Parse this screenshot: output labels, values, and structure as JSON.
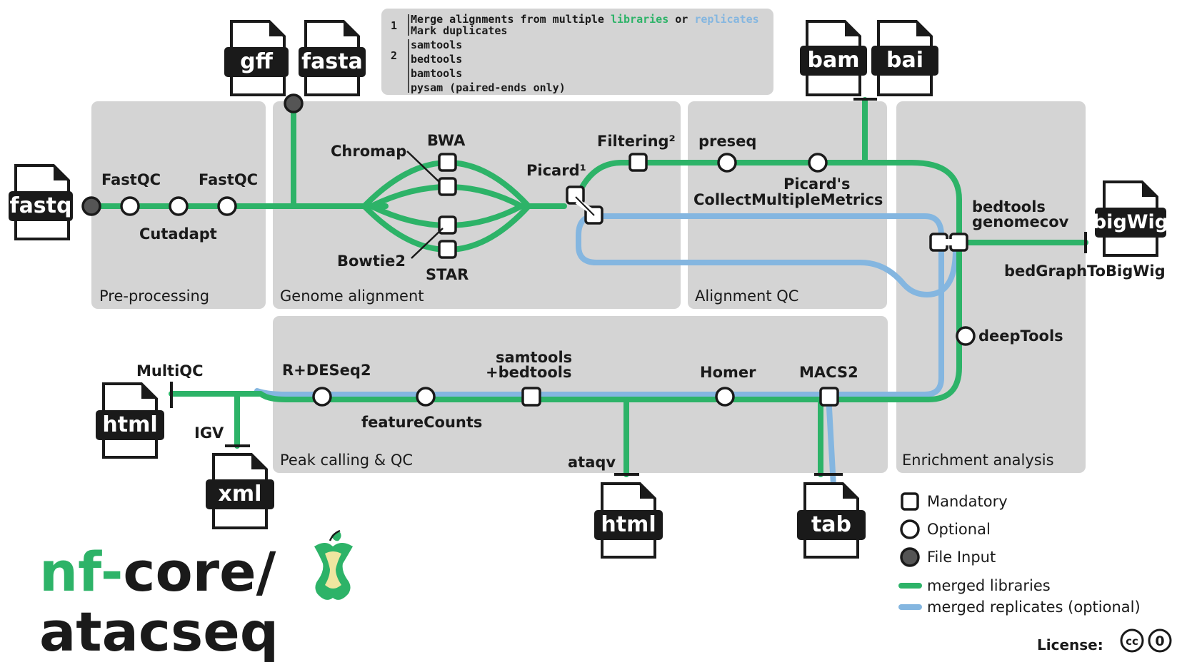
{
  "notes": {
    "n1_label": "1",
    "n1_line1_prefix": "Merge alignments from multiple ",
    "n1_line1_libraries": "libraries",
    "n1_line1_or": " or ",
    "n1_line1_replicates": "replicates",
    "n1_line2": "Mark duplicates",
    "n2_label": "2",
    "n2_items": [
      "samtools",
      "bedtools",
      "bamtools",
      "pysam (paired-ends only)"
    ]
  },
  "sections": {
    "preprocessing": "Pre-processing",
    "genome_alignment": "Genome alignment",
    "alignment_qc": "Alignment QC",
    "enrichment": "Enrichment analysis",
    "peak_calling": "Peak calling & QC"
  },
  "files": {
    "fastq": "fastq",
    "gff": "gff",
    "fasta": "fasta",
    "bam": "bam",
    "bai": "bai",
    "bigwig": "bigWig",
    "html_multiqc": "html",
    "xml_igv": "xml",
    "html_ataqv": "html",
    "tab_macs2": "tab"
  },
  "tools": {
    "fastqc_1": "FastQC",
    "cutadapt": "Cutadapt",
    "fastqc_2": "FastQC",
    "chromap": "Chromap",
    "bwa": "BWA",
    "bowtie2": "Bowtie2",
    "star": "STAR",
    "picard": "Picard¹",
    "filtering": "Filtering²",
    "preseq": "preseq",
    "picard_metrics_1": "Picard's",
    "picard_metrics_2": "CollectMultipleMetrics",
    "bedtools_genomecov_1": "bedtools",
    "bedtools_genomecov_2": "genomecov",
    "bedgraphtobigwig": "bedGraphToBigWig",
    "deeptools": "deepTools",
    "macs2": "MACS2",
    "homer": "Homer",
    "samtools_bedtools_1": "samtools",
    "samtools_bedtools_2": "+bedtools",
    "featurecounts": "featureCounts",
    "r_deseq2": "R+DESeq2",
    "multiqc": "MultiQC",
    "igv": "IGV",
    "ataqv": "ataqv"
  },
  "legend": {
    "mandatory": "Mandatory",
    "optional": "Optional",
    "file_input": "File Input",
    "merged_libraries": "merged libraries",
    "merged_replicates": "merged replicates (optional)"
  },
  "colors": {
    "merged_libraries": "#2db368",
    "merged_replicates": "#84b6e0",
    "panel": "#d4d4d4",
    "logo_green": "#2db368"
  },
  "logo": {
    "nf": "nf",
    "dash": "-",
    "core": "core/",
    "name": "atacseq"
  },
  "license": {
    "label": "License:",
    "cc": "cc",
    "zero": "0"
  }
}
